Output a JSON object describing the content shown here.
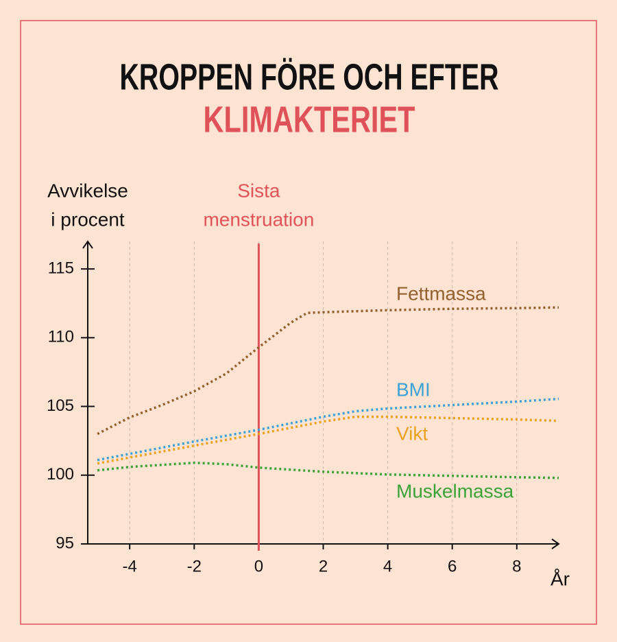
{
  "chart_data": {
    "type": "line",
    "title": "KROPPEN FÖRE OCH EFTER",
    "subtitle": "KLIMAKTERIET",
    "y_label": [
      "Avvikelse",
      "i procent"
    ],
    "x_label": "År",
    "xlim": [
      -5.3,
      9.3
    ],
    "xticks": [
      -4,
      -2,
      0,
      2,
      4,
      6,
      8
    ],
    "ylim": [
      95,
      117
    ],
    "yticks": [
      95,
      100,
      105,
      110,
      115
    ],
    "grid": true,
    "annotation": {
      "text": [
        "Sista",
        "menstruation"
      ],
      "x": 0,
      "color": "#e0525a"
    },
    "series": [
      {
        "name": "Fettmassa",
        "color": "#93602f",
        "x": [
          -5,
          -4,
          -3,
          -2,
          -1,
          0,
          1,
          1.5,
          2,
          4,
          6,
          8,
          9.3
        ],
        "values": [
          103,
          104.2,
          105.1,
          106.1,
          107.4,
          109.3,
          111.1,
          111.8,
          111.85,
          112,
          112.1,
          112.15,
          112.2
        ]
      },
      {
        "name": "BMI",
        "color": "#3aa3d6",
        "x": [
          -5,
          -4,
          -2,
          0,
          2,
          3,
          4,
          6,
          8,
          9.3
        ],
        "values": [
          101.1,
          101.55,
          102.45,
          103.3,
          104.25,
          104.65,
          104.85,
          105.1,
          105.35,
          105.55
        ]
      },
      {
        "name": "Vikt",
        "color": "#e8a21f",
        "x": [
          -5,
          -2,
          0,
          2,
          3,
          4,
          6,
          8,
          9.3
        ],
        "values": [
          100.85,
          102.15,
          103,
          103.9,
          104.25,
          104.25,
          104.15,
          104.05,
          103.95
        ]
      },
      {
        "name": "Muskelmassa",
        "color": "#3aa33a",
        "x": [
          -5,
          -4,
          -2,
          -1,
          0,
          2,
          4,
          6,
          8,
          9.3
        ],
        "values": [
          100.35,
          100.6,
          100.9,
          100.8,
          100.55,
          100.25,
          100.05,
          99.95,
          99.85,
          99.8
        ]
      }
    ]
  }
}
